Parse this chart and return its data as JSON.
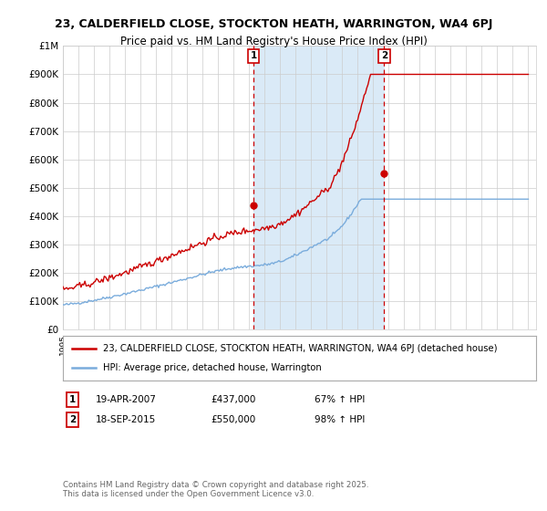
{
  "title_line1": "23, CALDERFIELD CLOSE, STOCKTON HEATH, WARRINGTON, WA4 6PJ",
  "title_line2": "Price paid vs. HM Land Registry's House Price Index (HPI)",
  "ylim": [
    0,
    1000000
  ],
  "yticks": [
    0,
    100000,
    200000,
    300000,
    400000,
    500000,
    600000,
    700000,
    800000,
    900000,
    1000000
  ],
  "ytick_labels": [
    "£0",
    "£100K",
    "£200K",
    "£300K",
    "£400K",
    "£500K",
    "£600K",
    "£700K",
    "£800K",
    "£900K",
    "£1M"
  ],
  "x_start_year": 1995,
  "x_end_year": 2025,
  "red_line_color": "#cc0000",
  "blue_line_color": "#7aacdc",
  "shading_color": "#daeaf7",
  "grid_color": "#cccccc",
  "background_color": "#ffffff",
  "marker1_date_num": 2007.29,
  "marker1_value": 437000,
  "marker2_date_num": 2015.71,
  "marker2_value": 550000,
  "marker1_label": "1",
  "marker2_label": "2",
  "legend_red": "23, CALDERFIELD CLOSE, STOCKTON HEATH, WARRINGTON, WA4 6PJ (detached house)",
  "legend_blue": "HPI: Average price, detached house, Warrington",
  "ann1_date": "19-APR-2007",
  "ann1_price": "£437,000",
  "ann1_hpi": "67% ↑ HPI",
  "ann2_date": "18-SEP-2015",
  "ann2_price": "£550,000",
  "ann2_hpi": "98% ↑ HPI",
  "footnote": "Contains HM Land Registry data © Crown copyright and database right 2025.\nThis data is licensed under the Open Government Licence v3.0.",
  "title_fontsize": 9,
  "axis_fontsize": 7.5,
  "legend_fontsize": 7.5
}
